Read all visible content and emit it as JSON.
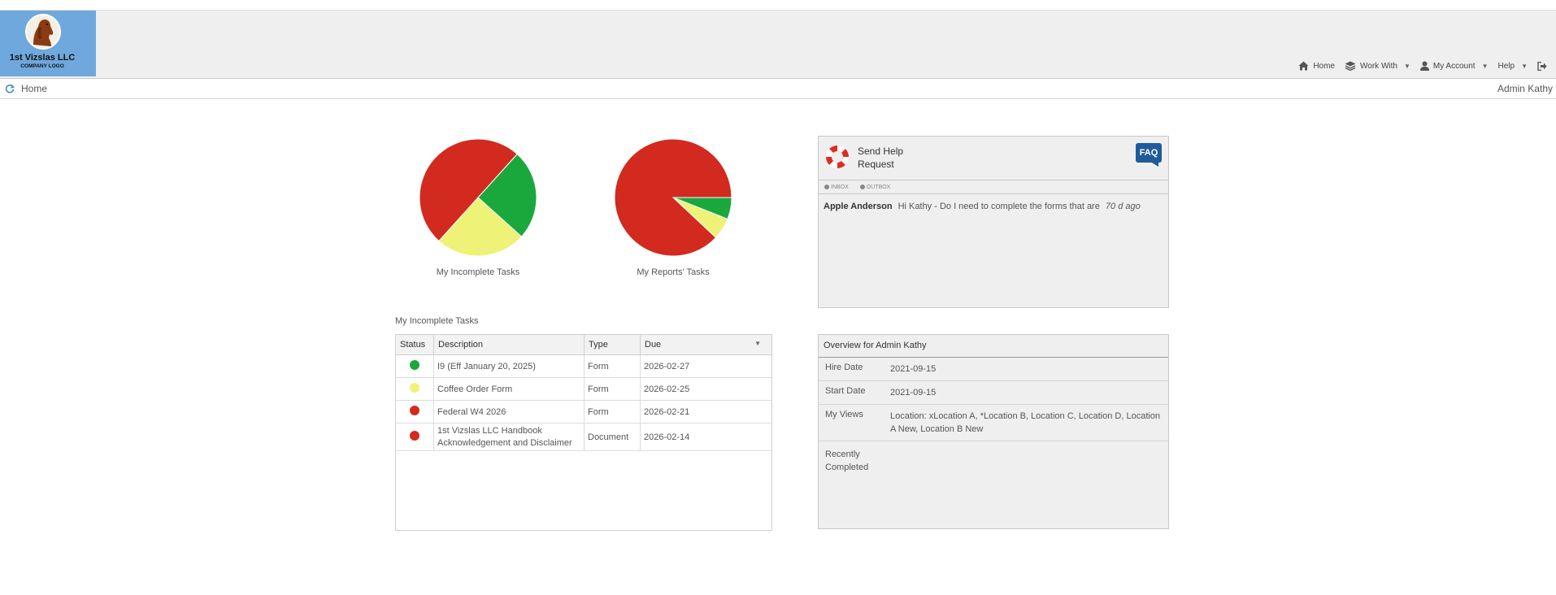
{
  "logo": {
    "company_name": "1st Vizslas LLC",
    "company_sub": "COMPANY LOGO"
  },
  "nav": {
    "home": "Home",
    "work_with": "Work With",
    "my_account": "My Account",
    "help": "Help"
  },
  "breadcrumb": {
    "home": "Home"
  },
  "user": {
    "name": "Admin Kathy"
  },
  "colors": {
    "red": "#d22a1e",
    "green": "#1aa83d",
    "yellow": "#eef277",
    "faq_blue": "#1f5b9b",
    "logo_bg": "#6fa8dc"
  },
  "chart_data": [
    {
      "type": "pie",
      "title": "My Incomplete Tasks",
      "slices": [
        {
          "label": "Green",
          "value": 1,
          "color": "#1aa83d"
        },
        {
          "label": "Yellow",
          "value": 1,
          "color": "#eef277"
        },
        {
          "label": "Red",
          "value": 2,
          "color": "#d22a1e"
        }
      ]
    },
    {
      "type": "pie",
      "title": "My Reports' Tasks",
      "slices": [
        {
          "label": "Green",
          "value": 6,
          "color": "#1aa83d"
        },
        {
          "label": "Yellow",
          "value": 6,
          "color": "#eef277"
        },
        {
          "label": "Red",
          "value": 88,
          "color": "#d22a1e"
        }
      ]
    }
  ],
  "tasks": {
    "title": "My Incomplete Tasks",
    "columns": [
      "Status",
      "Description",
      "Type",
      "Due"
    ],
    "rows": [
      {
        "status": "green",
        "description": "I9 (Eff January 20, 2025)",
        "type": "Form",
        "due": "2026-02-27"
      },
      {
        "status": "yellow",
        "description": "Coffee Order Form",
        "type": "Form",
        "due": "2026-02-25"
      },
      {
        "status": "red",
        "description": "Federal W4 2026",
        "type": "Form",
        "due": "2026-02-21"
      },
      {
        "status": "red",
        "description_line1": "1st Vizslas LLC Handbook",
        "description_line2": "Acknowledgement and Disclaimer",
        "type": "Document",
        "due": "2026-02-14"
      }
    ]
  },
  "help_panel": {
    "title_line1": "Send Help",
    "title_line2": "Request",
    "faq": "FAQ",
    "tab_inbox": "INBOX",
    "tab_outbox": "OUTBOX",
    "message": {
      "sender": "Apple Anderson",
      "text": "Hi Kathy - Do I need to complete the forms that are",
      "ago": "70 d ago"
    }
  },
  "overview": {
    "title": "Overview for Admin Kathy",
    "hire_date_label": "Hire Date",
    "hire_date": "2021-09-15",
    "start_date_label": "Start Date",
    "start_date": "2021-09-15",
    "my_views_label": "My Views",
    "my_views": "Location: xLocation A, *Location B, Location C, Location D, Location A New, Location B New",
    "recent_label_line1": "Recently",
    "recent_label_line2": "Completed"
  }
}
